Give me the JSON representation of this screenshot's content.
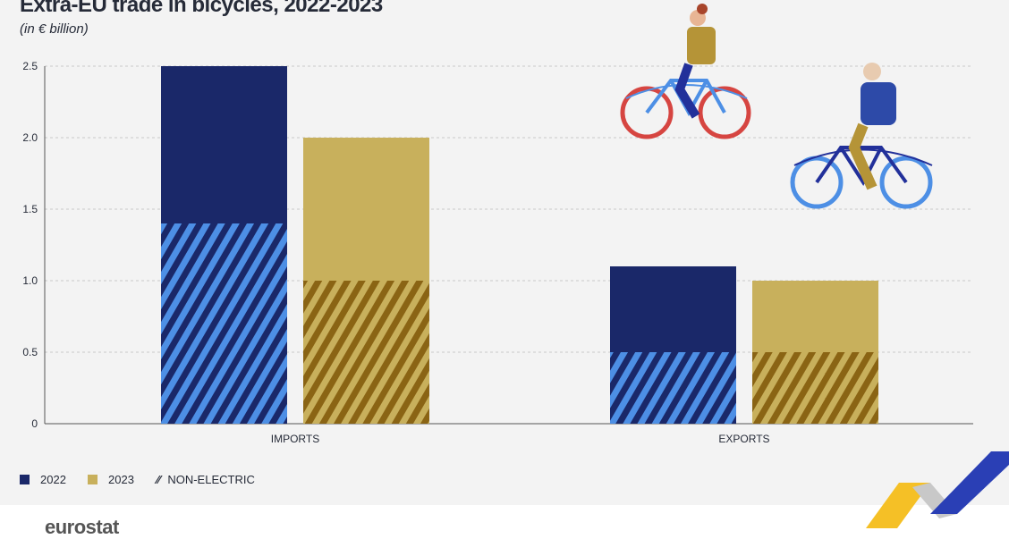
{
  "chart_data": {
    "type": "bar",
    "title": "Extra-EU trade in bicycles, 2022-2023",
    "subtitle": "(in € billion)",
    "categories": [
      "IMPORTS",
      "EXPORTS"
    ],
    "series": [
      {
        "name": "2022",
        "values": [
          2.5,
          1.1
        ],
        "non_electric": [
          1.4,
          0.5
        ],
        "color": "#1a2869",
        "hatch_color": "#4d8fe5"
      },
      {
        "name": "2023",
        "values": [
          2.0,
          1.0
        ],
        "non_electric": [
          1.0,
          0.5
        ],
        "color": "#c8b05c",
        "hatch_color": "#8a6414"
      }
    ],
    "ylim": [
      0,
      2.5
    ],
    "yticks": [
      "0",
      "0.5",
      "1.0",
      "1.5",
      "2.0",
      "2.5"
    ],
    "grid": true,
    "legend": {
      "items": [
        "2022",
        "2023",
        "NON-ELECTRIC"
      ],
      "placement": "bottom-left"
    }
  },
  "brand": "eurostat"
}
